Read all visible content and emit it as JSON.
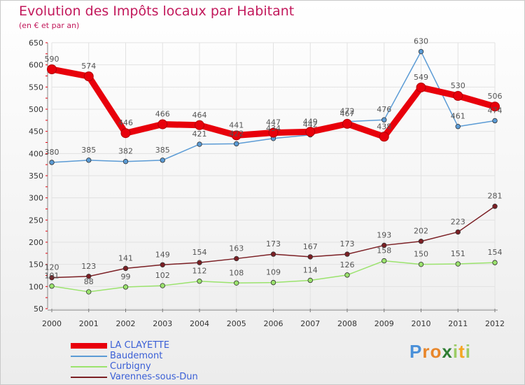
{
  "chart_data": {
    "type": "line",
    "title": "Evolution des Impôts locaux par Habitant",
    "subtitle": "(en € et par an)",
    "categories": [
      "2000",
      "2001",
      "2002",
      "2003",
      "2004",
      "2005",
      "2006",
      "2007",
      "2008",
      "2009",
      "2010",
      "2011",
      "2012"
    ],
    "ylim": [
      50,
      650
    ],
    "yticks": [
      50,
      100,
      150,
      200,
      250,
      300,
      350,
      400,
      450,
      500,
      550,
      600,
      650
    ],
    "grid": true,
    "series": [
      {
        "name": "LA CLAYETTE",
        "color": "#e8000b",
        "width": 9,
        "values": [
          590,
          574,
          446,
          466,
          464,
          441,
          447,
          449,
          467,
          438,
          549,
          530,
          506
        ]
      },
      {
        "name": "Baudemont",
        "color": "#5b9bd5",
        "width": 1.5,
        "values": [
          380,
          385,
          382,
          385,
          421,
          422,
          434,
          442,
          472,
          476,
          630,
          461,
          474
        ]
      },
      {
        "name": "Curbigny",
        "color": "#9be36d",
        "width": 1.5,
        "values": [
          101,
          88,
          99,
          102,
          112,
          108,
          109,
          114,
          126,
          158,
          150,
          151,
          154
        ]
      },
      {
        "name": "Varennes-sous-Dun",
        "color": "#7b1f24",
        "width": 1.5,
        "values": [
          120,
          123,
          141,
          149,
          154,
          163,
          173,
          167,
          173,
          193,
          202,
          223,
          281
        ]
      }
    ]
  },
  "brand": {
    "letters": [
      "P",
      "r",
      "o",
      "x",
      "i",
      "t",
      "i"
    ],
    "colors": [
      "#4a90d9",
      "#e8862a",
      "#e8862a",
      "#2e7d32",
      "#9ccc65",
      "#f5a623",
      "#9ccc65"
    ]
  }
}
